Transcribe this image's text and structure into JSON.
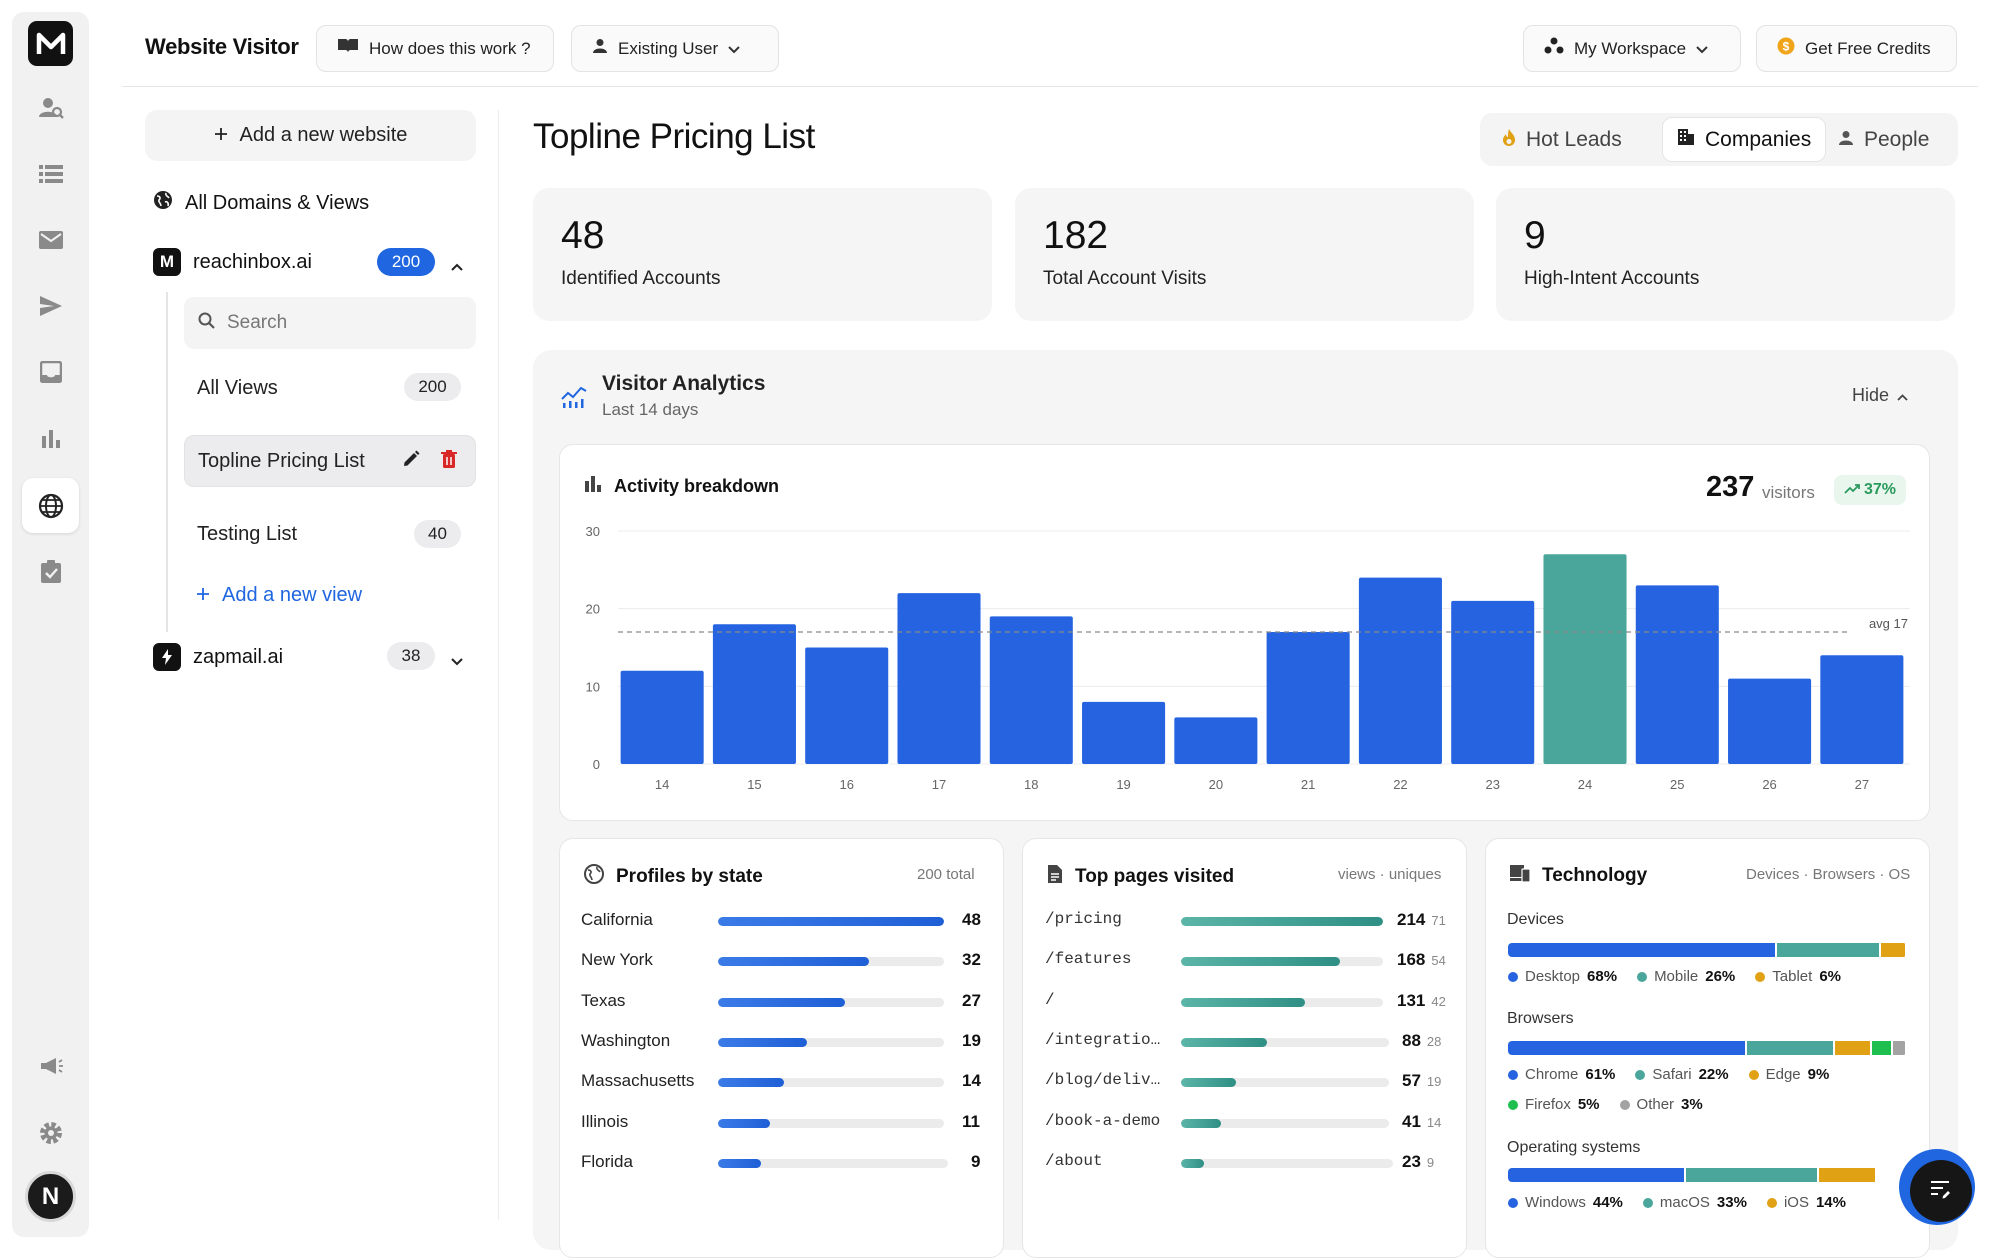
{
  "app": {
    "title": "Website Visitor"
  },
  "topbar": {
    "how_label": "How does this work ?",
    "user_label": "Existing User",
    "workspace_label": "My Workspace",
    "credits_label": "Get Free Credits"
  },
  "sidebar": {
    "add_website_label": "Add a new website",
    "all_domains_label": "All Domains & Views",
    "domains": [
      {
        "name": "reachinbox.ai",
        "count": "200",
        "logo_letter": "M"
      },
      {
        "name": "zapmail.ai",
        "count": "38",
        "logo_letter": "⚡"
      }
    ],
    "search_placeholder": "Search",
    "views": [
      {
        "label": "All Views",
        "count": "200"
      },
      {
        "label": "Topline Pricing List"
      },
      {
        "label": "Testing List",
        "count": "40"
      }
    ],
    "add_view_label": "Add a new view",
    "avatar_letter": "N"
  },
  "main": {
    "title": "Topline Pricing List",
    "tabs": [
      {
        "label": "Hot Leads"
      },
      {
        "label": "Companies"
      },
      {
        "label": "People"
      }
    ],
    "kpis": [
      {
        "value": "48",
        "label": "Identified Accounts"
      },
      {
        "value": "182",
        "label": "Total Account Visits"
      },
      {
        "value": "9",
        "label": "High-Intent Accounts"
      }
    ],
    "analytics": {
      "title": "Visitor Analytics",
      "subtitle": "Last 14 days",
      "hide_label": "Hide"
    },
    "activity": {
      "title": "Activity breakdown",
      "visitors_value": "237",
      "visitors_label": "visitors",
      "trend": "37%"
    },
    "profiles": {
      "title": "Profiles by state",
      "total": "200 total",
      "rows": [
        {
          "label": "California",
          "value": 48
        },
        {
          "label": "New York",
          "value": 32
        },
        {
          "label": "Texas",
          "value": 27
        },
        {
          "label": "Washington",
          "value": 19
        },
        {
          "label": "Massachusetts",
          "value": 14
        },
        {
          "label": "Illinois",
          "value": 11
        },
        {
          "label": "Florida",
          "value": 9
        }
      ]
    },
    "pages": {
      "title": "Top pages visited",
      "meta": "views · uniques",
      "rows": [
        {
          "path": "/pricing",
          "views": 214,
          "uniques": 71
        },
        {
          "path": "/features",
          "views": 168,
          "uniques": 54
        },
        {
          "path": "/",
          "views": 131,
          "uniques": 42
        },
        {
          "path": "/integratio…",
          "views": 88,
          "uniques": 28
        },
        {
          "path": "/blog/deliv…",
          "views": 57,
          "uniques": 19
        },
        {
          "path": "/book-a-demo",
          "views": 41,
          "uniques": 14
        },
        {
          "path": "/about",
          "views": 23,
          "uniques": 9
        }
      ]
    },
    "technology": {
      "title": "Technology",
      "meta": "Devices · Browsers · OS",
      "sections": [
        {
          "title": "Devices",
          "items": [
            {
              "label": "Desktop",
              "pct": 68,
              "pct_text": "68%",
              "color": "#2563e0"
            },
            {
              "label": "Mobile",
              "pct": 26,
              "pct_text": "26%",
              "color": "#4aa59a"
            },
            {
              "label": "Tablet",
              "pct": 6,
              "pct_text": "6%",
              "color": "#e0a114"
            }
          ]
        },
        {
          "title": "Browsers",
          "items": [
            {
              "label": "Chrome",
              "pct": 61,
              "pct_text": "61%",
              "color": "#2563e0"
            },
            {
              "label": "Safari",
              "pct": 22,
              "pct_text": "22%",
              "color": "#4aa59a"
            },
            {
              "label": "Edge",
              "pct": 9,
              "pct_text": "9%",
              "color": "#e0a114"
            },
            {
              "label": "Firefox",
              "pct": 5,
              "pct_text": "5%",
              "color": "#1fbf4f"
            },
            {
              "label": "Other",
              "pct": 3,
              "pct_text": "3%",
              "color": "#a3a3a3"
            }
          ]
        },
        {
          "title": "Operating systems",
          "items": [
            {
              "label": "Windows",
              "pct": 44,
              "pct_text": "44%",
              "color": "#2563e0"
            },
            {
              "label": "macOS",
              "pct": 33,
              "pct_text": "33%",
              "color": "#4aa59a"
            },
            {
              "label": "iOS",
              "pct": 14,
              "pct_text": "14%",
              "color": "#e0a114"
            }
          ]
        }
      ]
    }
  },
  "colors": {
    "accent": "#2563e0",
    "highlight_bar": "#4aa59a",
    "teal": "#4aa59a",
    "danger": "#d92626"
  },
  "chart_data": {
    "type": "bar",
    "title": "Activity breakdown",
    "categories": [
      "14",
      "15",
      "16",
      "17",
      "18",
      "19",
      "20",
      "21",
      "22",
      "23",
      "24",
      "25",
      "26",
      "27"
    ],
    "values": [
      12,
      18,
      15,
      22,
      19,
      8,
      6,
      17,
      24,
      21,
      27,
      23,
      11,
      14
    ],
    "highlight_index": 10,
    "ylim": [
      0,
      30
    ],
    "yticks": [
      0,
      10,
      20,
      30
    ],
    "average": 17,
    "average_label": "avg 17",
    "grid": true,
    "xlabel": "",
    "ylabel": ""
  }
}
